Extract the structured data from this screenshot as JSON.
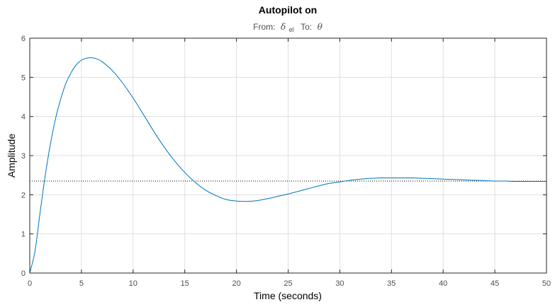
{
  "chart_data": {
    "type": "line",
    "title": "Autopilot on",
    "subtitle": {
      "from_label": "From:",
      "from_symbol": "δ",
      "from_subscript": "el",
      "to_label": "To:",
      "to_symbol": "θ"
    },
    "xlabel": "Time (seconds)",
    "ylabel": "Amplitude",
    "xlim": [
      0,
      50
    ],
    "ylim": [
      0,
      6
    ],
    "xticks": [
      "0",
      "5",
      "10",
      "15",
      "20",
      "25",
      "30",
      "35",
      "40",
      "45",
      "50"
    ],
    "yticks": [
      "0",
      "1",
      "2",
      "3",
      "4",
      "5",
      "6"
    ],
    "grid": true,
    "series": [
      {
        "color": "#0072bd",
        "x": [
          0,
          0.5,
          1,
          1.5,
          2,
          2.5,
          3,
          3.5,
          4,
          4.5,
          5,
          5.5,
          6,
          6.5,
          7,
          8,
          9,
          10,
          11,
          12,
          13,
          14,
          15,
          16,
          17,
          18,
          19,
          20,
          21,
          22,
          23,
          24,
          25,
          26,
          27,
          28,
          29,
          30,
          31,
          32,
          33,
          34,
          35,
          36,
          37,
          38,
          39,
          40,
          41,
          42,
          43,
          44,
          45,
          46,
          47,
          48,
          49,
          50
        ],
        "y": [
          0,
          0.55,
          1.55,
          2.5,
          3.3,
          3.95,
          4.45,
          4.85,
          5.12,
          5.32,
          5.44,
          5.49,
          5.5,
          5.47,
          5.4,
          5.17,
          4.85,
          4.47,
          4.05,
          3.62,
          3.22,
          2.87,
          2.57,
          2.32,
          2.12,
          1.98,
          1.88,
          1.84,
          1.83,
          1.85,
          1.9,
          1.96,
          2.02,
          2.09,
          2.16,
          2.23,
          2.29,
          2.33,
          2.37,
          2.4,
          2.42,
          2.43,
          2.43,
          2.43,
          2.43,
          2.42,
          2.41,
          2.4,
          2.39,
          2.38,
          2.37,
          2.36,
          2.35,
          2.35,
          2.34,
          2.34,
          2.34,
          2.34
        ]
      }
    ],
    "reference_line": {
      "y": 2.35,
      "style": "dotted",
      "color": "#000000"
    },
    "background": "#ffffff",
    "grid_color": "#dfdfdf",
    "axis_color": "#262626"
  }
}
